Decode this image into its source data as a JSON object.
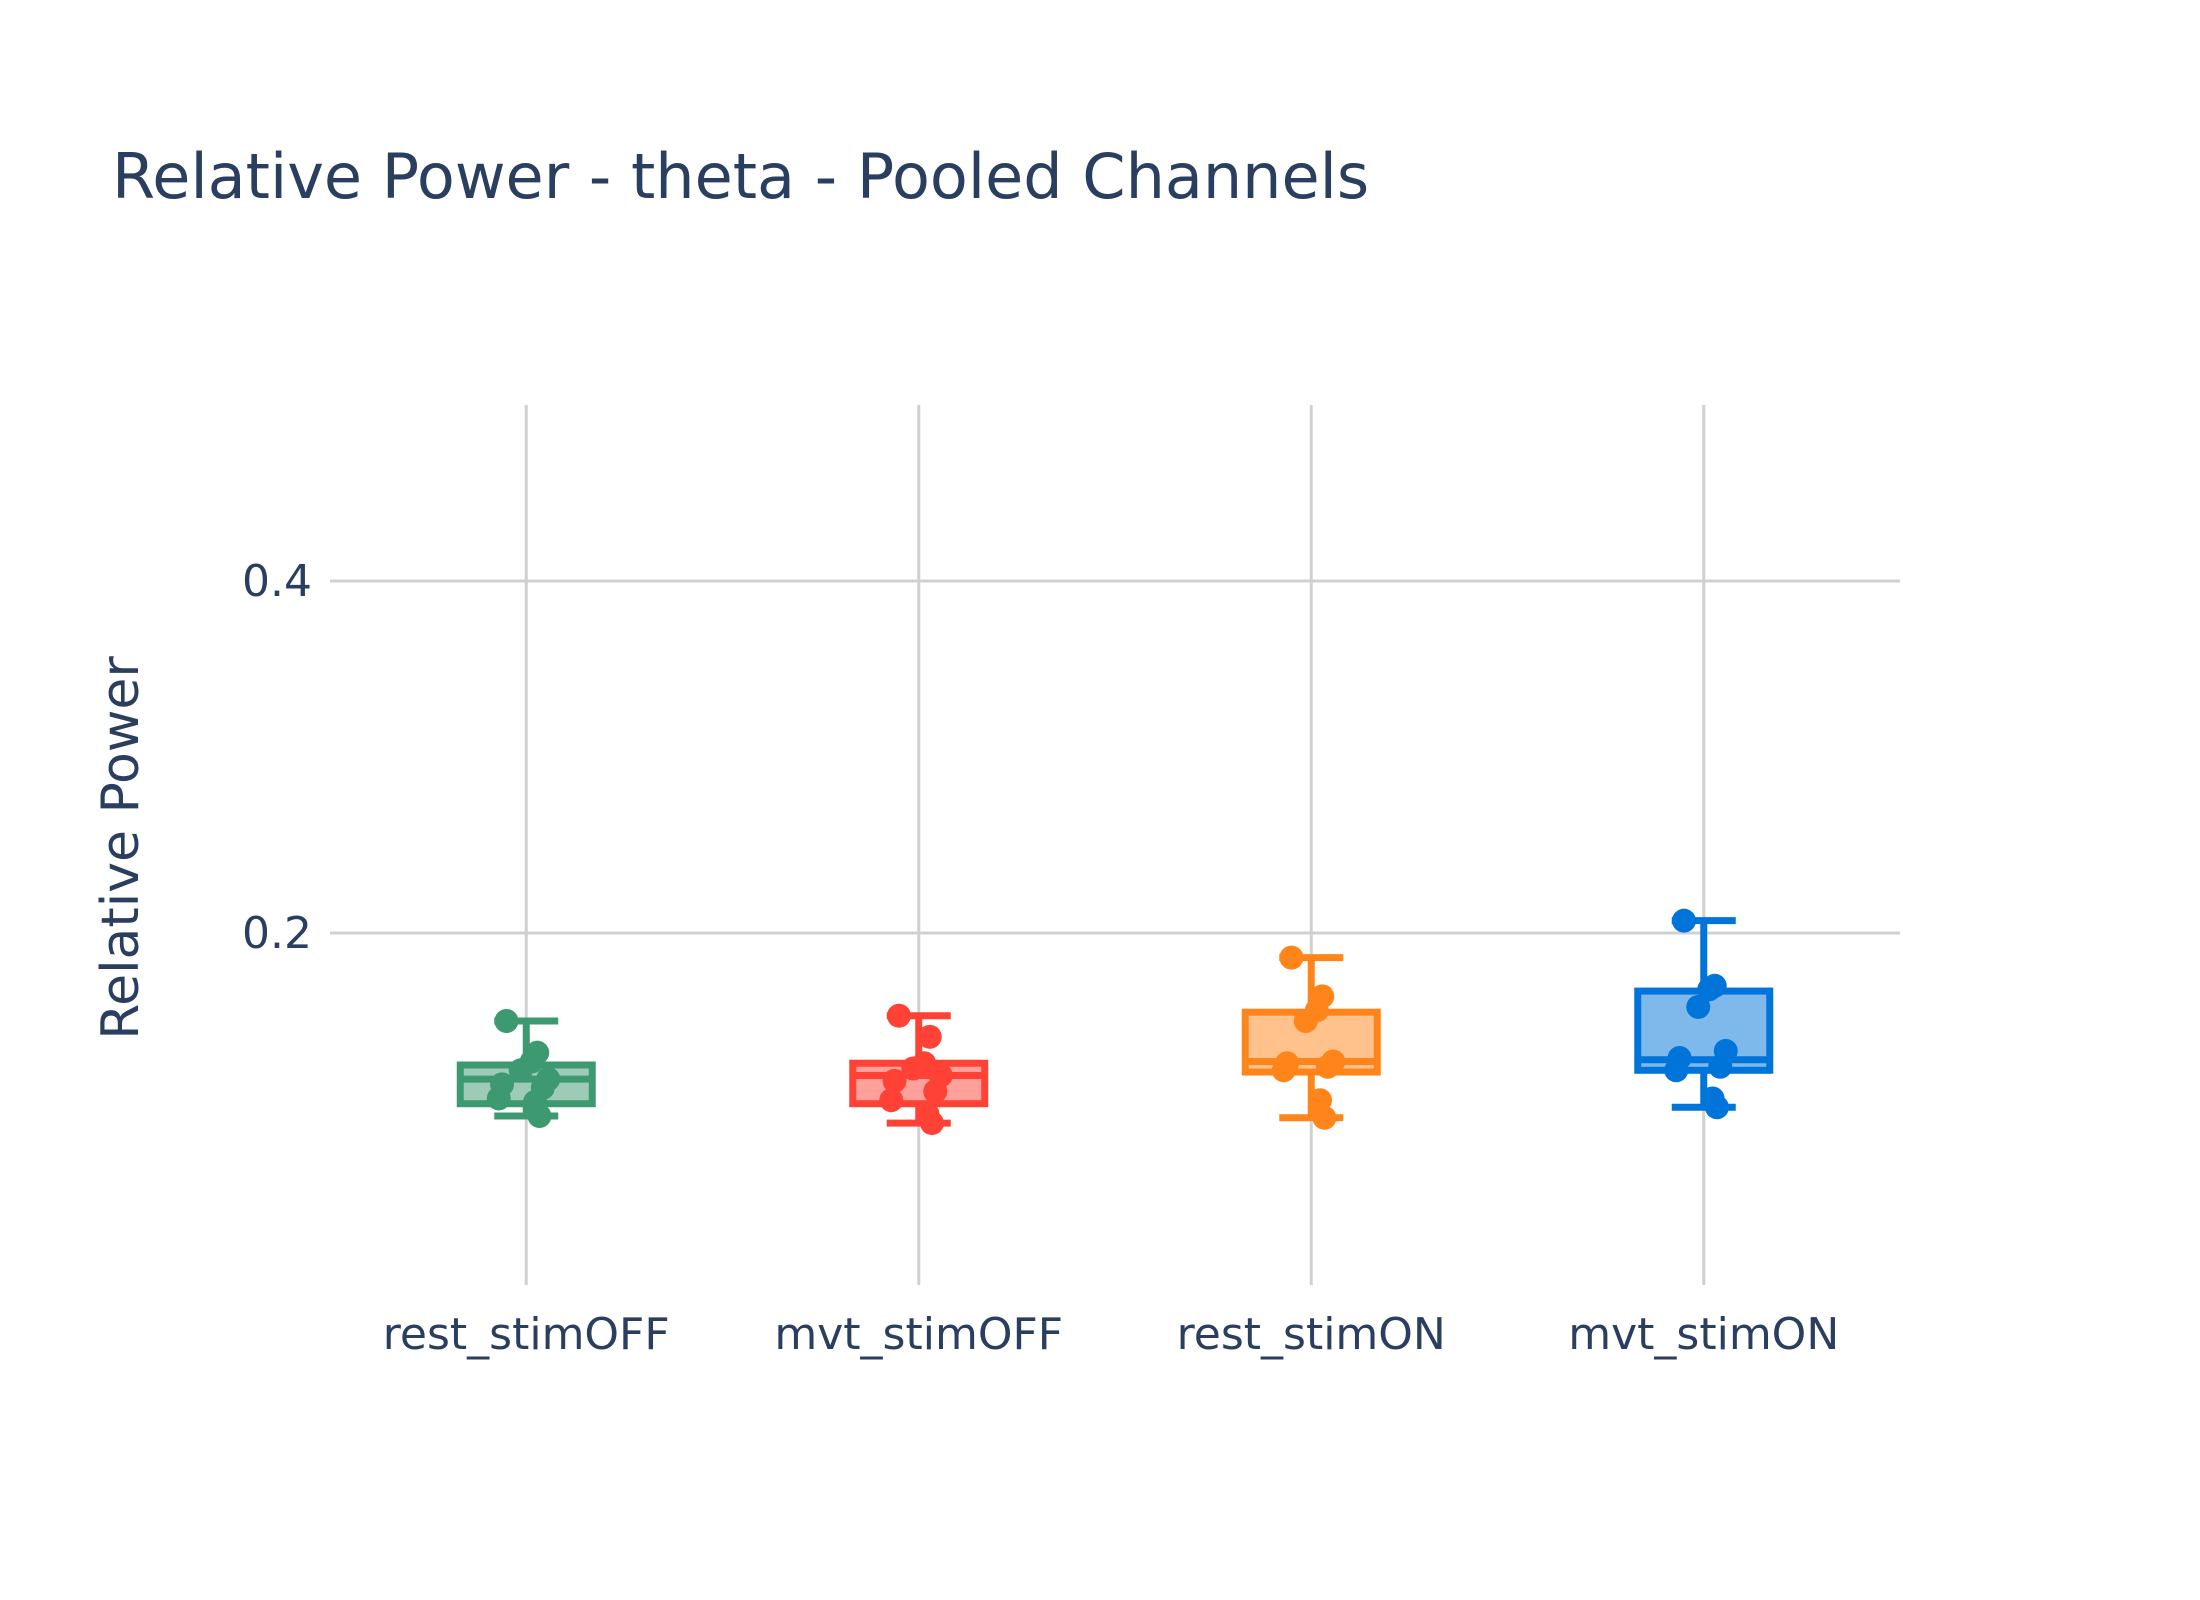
{
  "chart_data": {
    "type": "box",
    "title": "Relative Power - theta - Pooled Channels",
    "xlabel": "",
    "ylabel": "Relative Power",
    "ylim": [
      0,
      0.5
    ],
    "yticks": [
      0.2,
      0.4
    ],
    "ytick_labels": [
      "0.2",
      "0.4"
    ],
    "categories": [
      "rest_stimOFF",
      "mvt_stimOFF",
      "rest_stimON",
      "mvt_stimON"
    ],
    "grid": true,
    "legend": "none",
    "series": [
      {
        "category": "rest_stimOFF",
        "color": "#3d9970",
        "fill": "#9ecbb7",
        "min": 0.096,
        "q1": 0.103,
        "median": 0.117,
        "q3": 0.125,
        "max": 0.15,
        "points": [
          0.15,
          0.132,
          0.127,
          0.122,
          0.117,
          0.114,
          0.112,
          0.106,
          0.104,
          0.096
        ]
      },
      {
        "category": "mvt_stimOFF",
        "color": "#ff4136",
        "fill": "#ffa09b",
        "min": 0.092,
        "q1": 0.103,
        "median": 0.119,
        "q3": 0.126,
        "max": 0.153,
        "points": [
          0.153,
          0.141,
          0.126,
          0.123,
          0.119,
          0.116,
          0.11,
          0.105,
          0.097,
          0.092
        ]
      },
      {
        "category": "rest_stimON",
        "color": "#ff851b",
        "fill": "#ffc28d",
        "min": 0.095,
        "q1": 0.121,
        "median": 0.127,
        "q3": 0.155,
        "max": 0.186,
        "points": [
          0.186,
          0.164,
          0.156,
          0.15,
          0.127,
          0.126,
          0.124,
          0.122,
          0.105,
          0.095
        ]
      },
      {
        "category": "mvt_stimON",
        "color": "#0074d9",
        "fill": "#7fb9ec",
        "min": 0.101,
        "q1": 0.122,
        "median": 0.128,
        "q3": 0.167,
        "max": 0.207,
        "points": [
          0.207,
          0.17,
          0.168,
          0.158,
          0.133,
          0.129,
          0.124,
          0.122,
          0.106,
          0.101
        ]
      }
    ]
  }
}
